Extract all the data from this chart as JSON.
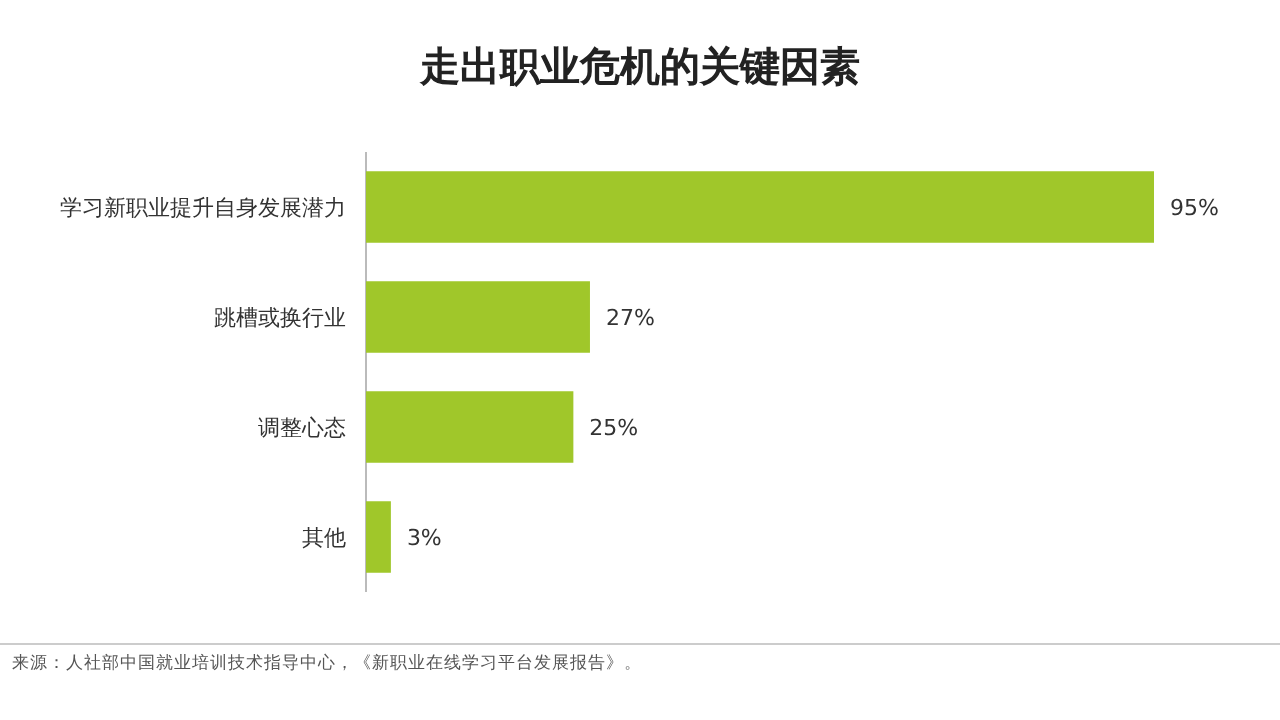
{
  "chart_data": {
    "type": "bar",
    "orientation": "horizontal",
    "title": "走出职业危机的关键因素",
    "categories": [
      "学习新职业提升自身发展潜力",
      "跳槽或换行业",
      "调整心态",
      "其他"
    ],
    "values": [
      95,
      27,
      25,
      3
    ],
    "color": "#a0c72a",
    "value_labels": [
      "95%",
      "27%",
      "25%",
      "3%"
    ],
    "annotations": [
      "来源：人社部中国就业培训技术指导中心，《新职业在线学习平台发展报告》。"
    ]
  }
}
